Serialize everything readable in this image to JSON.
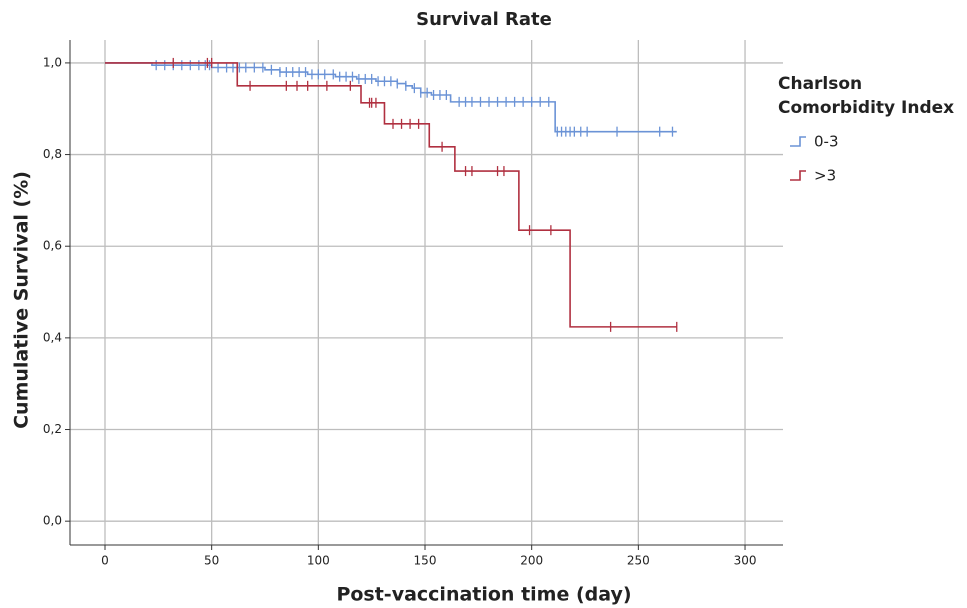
{
  "chart_data": {
    "type": "survival",
    "title": "Survival Rate",
    "x_label": "Post-vaccination time (day)",
    "y_label": "Cumulative Survival (%)",
    "legend_title": "Charlson Comorbidity Index",
    "xlim": [
      -16.4,
      317.8
    ],
    "ylim": [
      -0.052,
      1.05
    ],
    "xticks": [
      0,
      50,
      100,
      150,
      200,
      250,
      300
    ],
    "yticks": [
      {
        "value": 0,
        "label": "0,0"
      },
      {
        "value": 0.2,
        "label": "0,2"
      },
      {
        "value": 0.4,
        "label": "0,4"
      },
      {
        "value": 0.6,
        "label": "0,6"
      },
      {
        "value": 0.8,
        "label": "0,8"
      },
      {
        "value": 1,
        "label": "1,0"
      }
    ],
    "grid": true,
    "series": [
      {
        "name": "0-3",
        "color": "#6b93d6",
        "x": [
          0,
          22,
          50,
          75,
          82,
          95,
          108,
          118,
          127,
          137,
          141,
          144,
          148,
          153,
          162,
          211,
          268
        ],
        "values": [
          1.0,
          0.995,
          0.99,
          0.985,
          0.98,
          0.975,
          0.97,
          0.965,
          0.96,
          0.955,
          0.95,
          0.945,
          0.935,
          0.93,
          0.915,
          0.85,
          0.85
        ],
        "censor_x": [
          24,
          28,
          32,
          36,
          40,
          44,
          47,
          49,
          53,
          57,
          60,
          63,
          66,
          70,
          74,
          78,
          82,
          85,
          88,
          91,
          94,
          97,
          100,
          103,
          107,
          110,
          113,
          116,
          119,
          122,
          125,
          128,
          131,
          134,
          137,
          141,
          145,
          148,
          151,
          154,
          157,
          160,
          166,
          169,
          172,
          176,
          180,
          184,
          188,
          192,
          196,
          200,
          204,
          208,
          212,
          214,
          216,
          218,
          220,
          223,
          226,
          240,
          260,
          266
        ],
        "censor_values": [
          0.995,
          0.995,
          0.995,
          0.995,
          0.995,
          0.995,
          0.995,
          0.995,
          0.99,
          0.99,
          0.99,
          0.99,
          0.99,
          0.99,
          0.99,
          0.985,
          0.98,
          0.98,
          0.98,
          0.98,
          0.98,
          0.975,
          0.975,
          0.975,
          0.975,
          0.97,
          0.97,
          0.97,
          0.965,
          0.965,
          0.965,
          0.96,
          0.96,
          0.96,
          0.955,
          0.95,
          0.945,
          0.935,
          0.935,
          0.93,
          0.93,
          0.93,
          0.915,
          0.915,
          0.915,
          0.915,
          0.915,
          0.915,
          0.915,
          0.915,
          0.915,
          0.915,
          0.915,
          0.915,
          0.85,
          0.85,
          0.85,
          0.85,
          0.85,
          0.85,
          0.85,
          0.85,
          0.85,
          0.85
        ]
      },
      {
        "name": ">3",
        "color": "#b03040",
        "x": [
          0,
          62,
          120,
          131,
          152,
          164,
          194,
          218,
          268
        ],
        "values": [
          1.0,
          0.95,
          0.913,
          0.867,
          0.817,
          0.764,
          0.635,
          0.424,
          0.424
        ],
        "censor_x": [
          32,
          48,
          50,
          68,
          85,
          90,
          95,
          104,
          115,
          124,
          125,
          127,
          135,
          139,
          143,
          147,
          158,
          169,
          172,
          184,
          187,
          199,
          209,
          237,
          268
        ],
        "censor_values": [
          1.0,
          1.0,
          1.0,
          0.95,
          0.95,
          0.95,
          0.95,
          0.95,
          0.95,
          0.913,
          0.913,
          0.913,
          0.867,
          0.867,
          0.867,
          0.867,
          0.817,
          0.764,
          0.764,
          0.764,
          0.764,
          0.635,
          0.635,
          0.424,
          0.424
        ]
      }
    ]
  }
}
